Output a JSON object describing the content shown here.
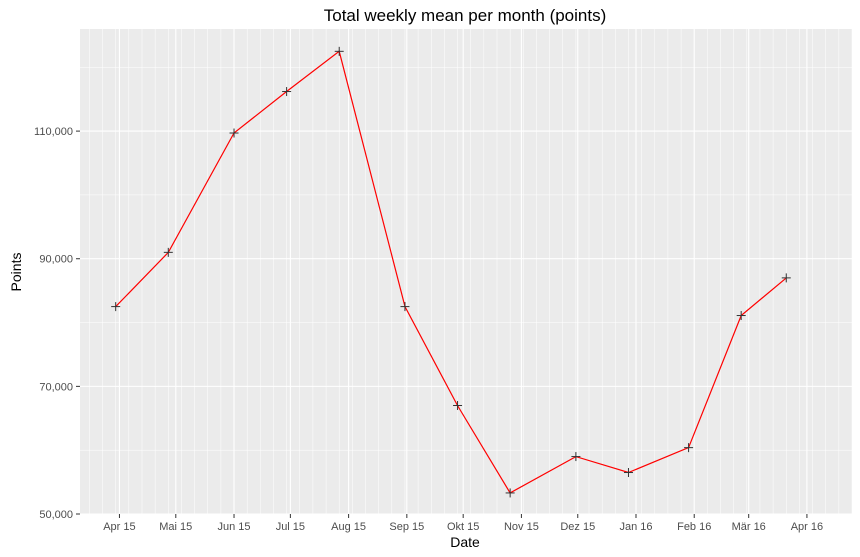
{
  "chart_data": {
    "type": "line",
    "title": "Total weekly mean per month (points)",
    "xlabel": "Date",
    "ylabel": "Points",
    "x_ticks": [
      "Apr 15",
      "Mai 15",
      "Jun 15",
      "Jul 15",
      "Aug 15",
      "Sep 15",
      "Okt 15",
      "Nov 15",
      "Dez 15",
      "Jan 16",
      "Feb 16",
      "Mär 16",
      "Apr 16"
    ],
    "x_tick_dates": [
      "2015-04-01",
      "2015-05-01",
      "2015-06-01",
      "2015-07-01",
      "2015-08-01",
      "2015-09-01",
      "2015-10-01",
      "2015-11-01",
      "2015-12-01",
      "2016-01-01",
      "2016-02-01",
      "2016-03-01",
      "2016-04-01"
    ],
    "xlim": [
      "2015-03-11",
      "2016-04-25"
    ],
    "y_ticks": [
      "50,000",
      "70,000",
      "90,000",
      "110,000"
    ],
    "y_tick_values": [
      50000,
      70000,
      90000,
      110000
    ],
    "ylim": [
      50000,
      126000
    ],
    "series": [
      {
        "x": [
          "2015-03-30",
          "2015-04-27",
          "2015-06-01",
          "2015-06-29",
          "2015-07-27",
          "2015-08-31",
          "2015-09-28",
          "2015-10-26",
          "2015-11-30",
          "2015-12-28",
          "2016-01-29",
          "2016-02-26",
          "2016-03-21"
        ],
        "y": [
          82500,
          91000,
          109700,
          116200,
          122500,
          82500,
          67000,
          53300,
          59000,
          56500,
          60400,
          81100,
          87000
        ]
      }
    ],
    "line_color": "#ff0000",
    "marker_color": "#333333",
    "marker": "cross",
    "panel_background": "#ebebeb",
    "grid": true
  }
}
